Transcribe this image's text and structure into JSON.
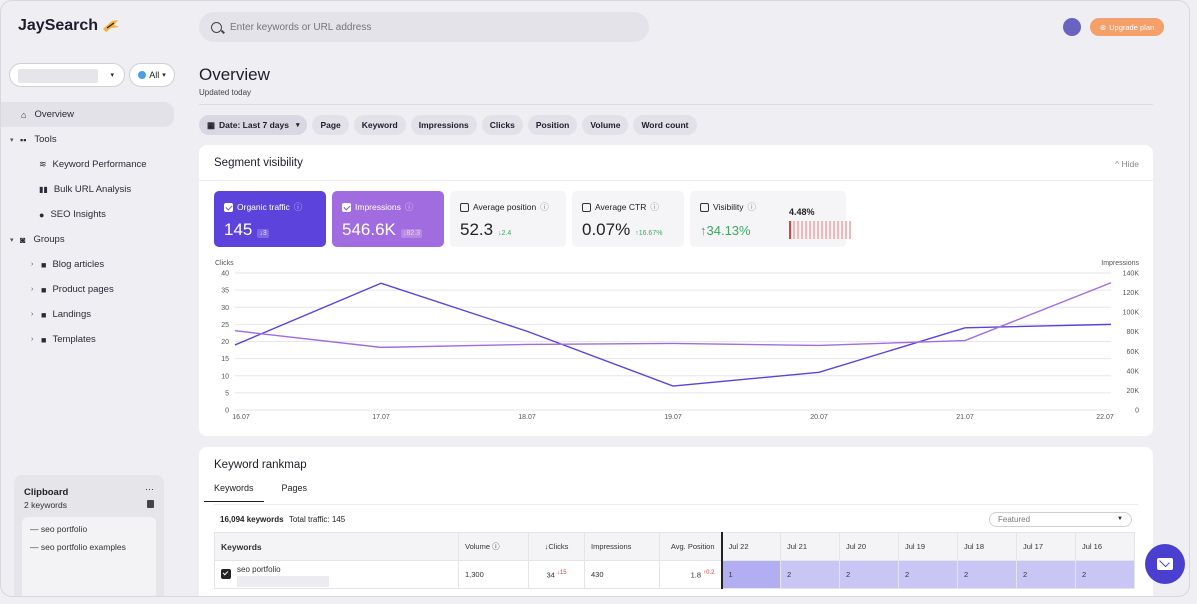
{
  "app": {
    "logo": "JaySearch"
  },
  "search": {
    "placeholder": "Enter keywords or URL address"
  },
  "upgrade": {
    "label": "Upgrade plan"
  },
  "sidebar": {
    "region": "All",
    "items": [
      {
        "label": "Overview"
      },
      {
        "label": "Tools"
      },
      {
        "label": "Keyword Performance"
      },
      {
        "label": "Bulk URL Analysis"
      },
      {
        "label": "SEO Insights"
      },
      {
        "label": "Groups"
      },
      {
        "label": "Blog articles"
      },
      {
        "label": "Product pages"
      },
      {
        "label": "Landings"
      },
      {
        "label": "Templates"
      }
    ],
    "clipboard": {
      "title": "Clipboard",
      "menu": "···",
      "count": "2 keywords",
      "items": [
        "— seo portfolio",
        "— seo portfolio examples"
      ]
    }
  },
  "header": {
    "title": "Overview",
    "subtitle": "Updated today"
  },
  "filters": [
    "Date: Last 7 days",
    "Page",
    "Keyword",
    "Impressions",
    "Clicks",
    "Position",
    "Volume",
    "Word count"
  ],
  "segment": {
    "title": "Segment visibility",
    "hide": "^ Hide",
    "metrics": [
      {
        "label": "Organic traffic",
        "value": "145",
        "delta": "↓3"
      },
      {
        "label": "Impressions",
        "value": "546.6K",
        "delta": "↓82.3"
      },
      {
        "label": "Average position",
        "value": "52.3",
        "delta": "↓2.4"
      },
      {
        "label": "Average CTR",
        "value": "0.07%",
        "delta": "↑16.67%"
      },
      {
        "label": "Visibility",
        "value": "↑34.13%",
        "extra": "4.48%"
      }
    ]
  },
  "chart_data": {
    "type": "line",
    "x": [
      "16.07",
      "17.07",
      "18.07",
      "19.07",
      "20.07",
      "21.07",
      "22.07"
    ],
    "ylabel": "Clicks",
    "y2label": "Impressions",
    "y_ticks": [
      40,
      35,
      30,
      25,
      20,
      15,
      10,
      5,
      0
    ],
    "y2_ticks": [
      "140K",
      "120K",
      "100K",
      "80K",
      "60K",
      "40K",
      "20K",
      "0"
    ],
    "ylim": [
      0,
      40
    ],
    "y2lim": [
      0,
      140000
    ],
    "series": [
      {
        "axis": "left",
        "color": "#5b43dc",
        "values": [
          19,
          37,
          23,
          7,
          11,
          24,
          25
        ]
      },
      {
        "axis": "right",
        "color": "#a06ce0",
        "values": [
          81000,
          64000,
          67000,
          68000,
          66000,
          71000,
          130000
        ]
      }
    ]
  },
  "rankmap": {
    "title": "Keyword rankmap",
    "tabs": [
      "Keywords",
      "Pages"
    ],
    "count": "16,094 keywords",
    "traffic": "Total traffic: 145",
    "sort": "Featured",
    "columns": [
      "Keywords",
      "Volume ⓘ",
      "↓Clicks",
      "Impressions",
      "Avg. Position"
    ],
    "dates": [
      "Jul 22",
      "Jul 21",
      "Jul 20",
      "Jul 19",
      "Jul 18",
      "Jul 17",
      "Jul 16"
    ],
    "rows": [
      {
        "keyword": "seo portfolio",
        "volume": "1,300",
        "clicks": "34",
        "clicks_delta": "↓15",
        "impressions": "430",
        "position": "1.8",
        "position_delta": "↑0.2",
        "ranks": [
          "1",
          "2",
          "2",
          "2",
          "2",
          "2",
          "2"
        ]
      }
    ]
  }
}
